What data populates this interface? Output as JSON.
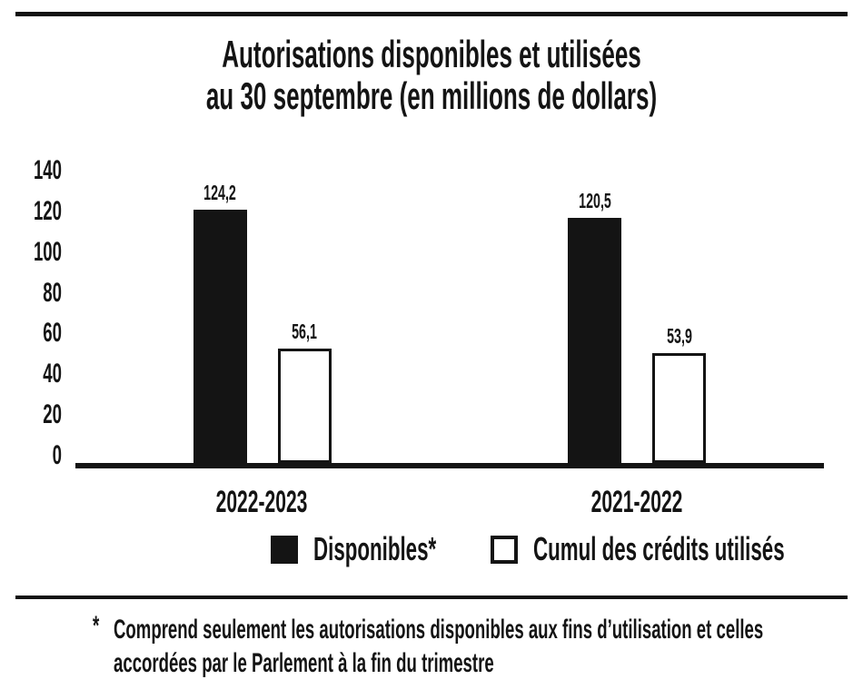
{
  "title": {
    "line1": "Autorisations disponibles et utilisées",
    "line2": "au 30 septembre (en millions de dollars)"
  },
  "chart_data": {
    "type": "bar",
    "title": "Autorisations disponibles et utilisées au 30 septembre (en millions de dollars)",
    "categories": [
      "2022-2023",
      "2021-2022"
    ],
    "series": [
      {
        "name": "Disponibles*",
        "swatch": "filled-black",
        "fill": "#141414",
        "values": [
          124.2,
          120.5
        ],
        "value_labels": [
          "124,2",
          "120,5"
        ]
      },
      {
        "name": "Cumul des crédits utilisés",
        "swatch": "outlined-white",
        "fill": "#ffffff",
        "values": [
          56.1,
          53.9
        ],
        "value_labels": [
          "56,1",
          "53,9"
        ]
      }
    ],
    "ylim": [
      0,
      140
    ],
    "yticks": [
      0,
      20,
      40,
      60,
      80,
      100,
      120,
      140
    ],
    "xlabel": "",
    "ylabel": "",
    "grid": false,
    "legend_position": "bottom"
  },
  "footnote": {
    "marker": "*",
    "line1": "Comprend seulement les autorisations disponibles aux fins d’utilisation et celles",
    "line2": "accordées par le Parlement à la fin du trimestre"
  },
  "colors": {
    "bar_fill": "#141414",
    "bar_outline": "#141414",
    "text": "#141414",
    "rule": "#121212",
    "background": "#ffffff"
  }
}
